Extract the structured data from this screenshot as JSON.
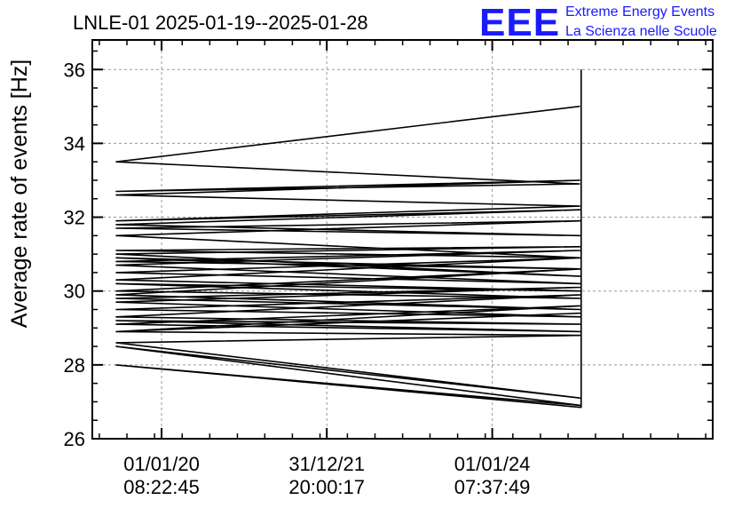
{
  "logo": {
    "letters": "EEE",
    "line1": "Extreme Energy Events",
    "line2": "La Scienza nelle Scuole",
    "color": "#1a1aff"
  },
  "chart_data": {
    "type": "line",
    "title": "LNLE-01 2025-01-19--2025-01-28",
    "ylabel": "Average rate of events [Hz]",
    "xlabel": "",
    "ylim": [
      26,
      36.8
    ],
    "yticks": [
      26,
      28,
      30,
      32,
      34,
      36
    ],
    "xlim": [
      "2019-03-01",
      "2026-09-01"
    ],
    "xticks": [
      {
        "date": "2020-01-01",
        "label_date": "01/01/20",
        "label_time": "08:22:45"
      },
      {
        "date": "2021-12-31",
        "label_date": "31/12/21",
        "label_time": "20:00:17"
      },
      {
        "date": "2024-01-01",
        "label_date": "01/01/24",
        "label_time": "07:37:49"
      }
    ],
    "grid": true,
    "line_color": "#000000",
    "series": [
      {
        "x": [
          "2019-06-15",
          "2025-01-20",
          "2019-06-15",
          "2025-01-20",
          "2019-06-15",
          "2025-01-21",
          "2019-06-15",
          "2025-01-21",
          "2019-06-15",
          "2025-01-22",
          "2019-06-15",
          "2025-01-22",
          "2019-06-15",
          "2025-01-23",
          "2019-06-15",
          "2025-01-23",
          "2019-06-15",
          "2025-01-24",
          "2019-06-15",
          "2025-01-24",
          "2019-06-15",
          "2025-01-25",
          "2019-06-15",
          "2025-01-25",
          "2019-06-15",
          "2025-01-26",
          "2019-06-15",
          "2025-01-26",
          "2019-06-15",
          "2025-01-27",
          "2019-06-15",
          "2025-01-27",
          "2019-06-15",
          "2025-01-28",
          "2019-06-15",
          "2025-01-28",
          "2019-06-15",
          "2025-01-28",
          "2019-06-15",
          "2025-01-28",
          "2019-06-15",
          "2025-01-28",
          "2019-06-15",
          "2025-01-28",
          "2019-06-15",
          "2025-01-28",
          "2019-06-15",
          "2025-01-28",
          "2019-06-15",
          "2025-01-28",
          "2019-06-15",
          "2025-01-28",
          "2019-06-15",
          "2025-01-28",
          "2019-06-15",
          "2025-01-28",
          "2019-06-15",
          "2025-01-28",
          "2025-01-28",
          "2025-01-28"
        ],
        "values": [
          33.5,
          35.0,
          33.5,
          32.9,
          32.7,
          33.0,
          32.6,
          32.3,
          31.9,
          32.2,
          31.8,
          31.5,
          31.7,
          31.9,
          31.5,
          30.9,
          31.1,
          31.2,
          31.0,
          30.4,
          30.9,
          30.6,
          30.8,
          31.1,
          30.7,
          30.2,
          30.5,
          30.9,
          30.3,
          30.0,
          30.2,
          29.8,
          30.0,
          30.6,
          29.9,
          29.5,
          29.8,
          30.1,
          29.7,
          29.3,
          29.5,
          29.9,
          29.3,
          29.1,
          29.2,
          28.9,
          29.1,
          29.6,
          28.9,
          29.4,
          28.9,
          28.8,
          28.6,
          27.1,
          28.5,
          26.9,
          28.0,
          26.85,
          28.5,
          36.0
        ]
      }
    ]
  }
}
